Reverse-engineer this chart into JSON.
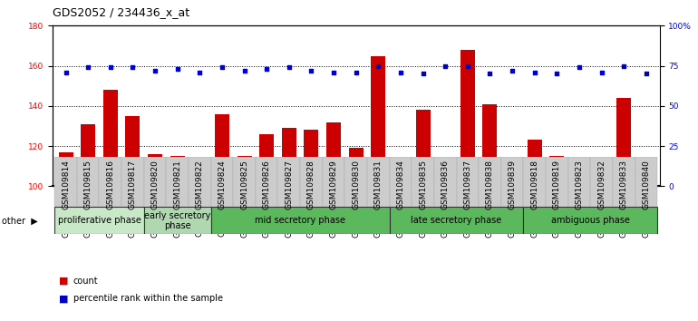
{
  "title": "GDS2052 / 234436_x_at",
  "samples": [
    "GSM109814",
    "GSM109815",
    "GSM109816",
    "GSM109817",
    "GSM109820",
    "GSM109821",
    "GSM109822",
    "GSM109824",
    "GSM109825",
    "GSM109826",
    "GSM109827",
    "GSM109828",
    "GSM109829",
    "GSM109830",
    "GSM109831",
    "GSM109834",
    "GSM109835",
    "GSM109836",
    "GSM109837",
    "GSM109838",
    "GSM109839",
    "GSM109818",
    "GSM109819",
    "GSM109823",
    "GSM109832",
    "GSM109833",
    "GSM109840"
  ],
  "counts": [
    117,
    131,
    148,
    135,
    116,
    115,
    114,
    136,
    115,
    126,
    129,
    128,
    132,
    119,
    165,
    101,
    138,
    104,
    168,
    141,
    110,
    123,
    115,
    111,
    113,
    144,
    105
  ],
  "percentile_ranks": [
    71,
    74,
    74,
    74,
    72,
    73,
    71,
    74,
    72,
    73,
    74,
    72,
    71,
    71,
    75,
    71,
    70,
    75,
    75,
    70,
    72,
    71,
    70,
    74,
    71,
    75,
    70
  ],
  "phases": [
    {
      "label": "proliferative phase",
      "start": 0,
      "end": 4,
      "color": "#c8e8c8"
    },
    {
      "label": "early secretory\nphase",
      "start": 4,
      "end": 7,
      "color": "#b0d8b0"
    },
    {
      "label": "mid secretory phase",
      "start": 7,
      "end": 15,
      "color": "#5cb85c"
    },
    {
      "label": "late secretory phase",
      "start": 15,
      "end": 21,
      "color": "#5cb85c"
    },
    {
      "label": "ambiguous phase",
      "start": 21,
      "end": 27,
      "color": "#5cb85c"
    }
  ],
  "bar_color": "#cc0000",
  "dot_color": "#0000cc",
  "ylim_left": [
    100,
    180
  ],
  "ylim_right": [
    0,
    100
  ],
  "yticks_left": [
    100,
    120,
    140,
    160,
    180
  ],
  "yticks_right": [
    0,
    25,
    50,
    75,
    100
  ],
  "grid_lines": [
    120,
    140,
    160
  ],
  "bar_baseline": 100,
  "title_fontsize": 9,
  "tick_fontsize": 6.5,
  "phase_fontsize": 7
}
